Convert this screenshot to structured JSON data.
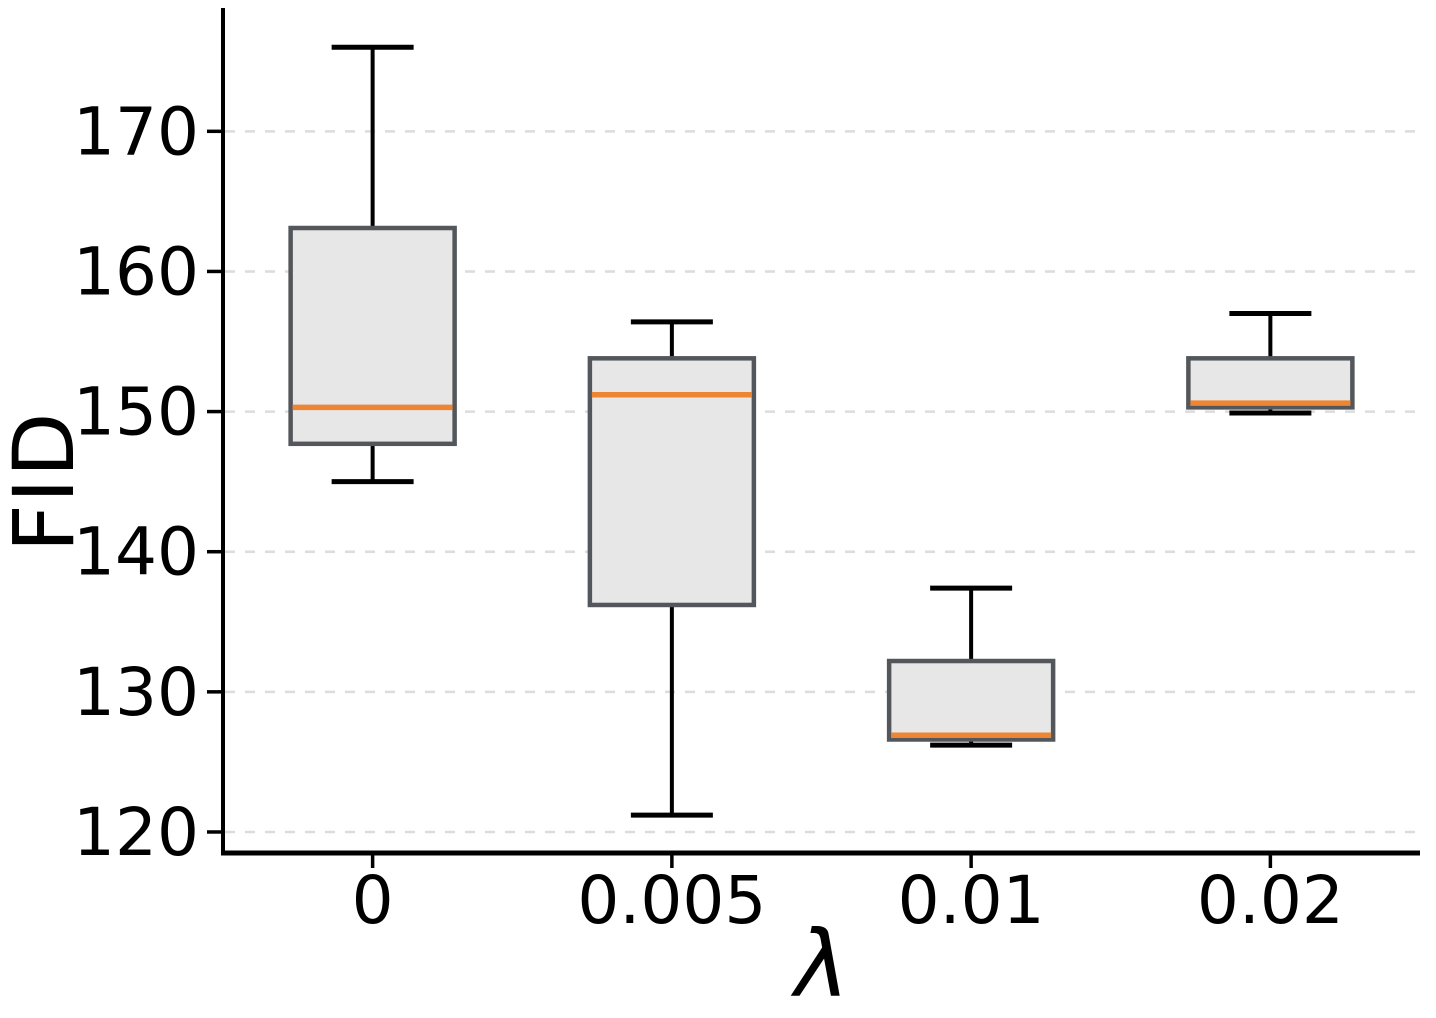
{
  "chart_data": {
    "type": "box",
    "title": "",
    "xlabel": "λ",
    "ylabel": "FID",
    "categories": [
      "0",
      "0.005",
      "0.01",
      "0.02"
    ],
    "series": [
      {
        "name": "lambda=0",
        "whisker_low": 145.0,
        "q1": 147.7,
        "median": 150.3,
        "q3": 163.1,
        "whisker_high": 176.0
      },
      {
        "name": "lambda=0.005",
        "whisker_low": 121.2,
        "q1": 136.2,
        "median": 151.2,
        "q3": 153.8,
        "whisker_high": 156.4
      },
      {
        "name": "lambda=0.01",
        "whisker_low": 126.2,
        "q1": 126.6,
        "median": 126.9,
        "q3": 132.2,
        "whisker_high": 137.4
      },
      {
        "name": "lambda=0.02",
        "whisker_low": 149.9,
        "q1": 150.3,
        "median": 150.6,
        "q3": 153.8,
        "whisker_high": 157.0
      }
    ],
    "y_ticks": [
      120,
      130,
      140,
      150,
      160,
      170
    ],
    "ylim": [
      118.5,
      178.8
    ],
    "xlim": [
      0.5,
      4.5
    ],
    "grid": "horizontal-dashed",
    "legend": "none",
    "colors": {
      "box_fill": "#e7e7e7",
      "box_edge": "#53575b",
      "median": "#ee8532",
      "whisker": "#000000",
      "grid": "#dcdcdc",
      "spine": "#000000",
      "tick_label": "#000000",
      "background": "#ffffff"
    }
  }
}
